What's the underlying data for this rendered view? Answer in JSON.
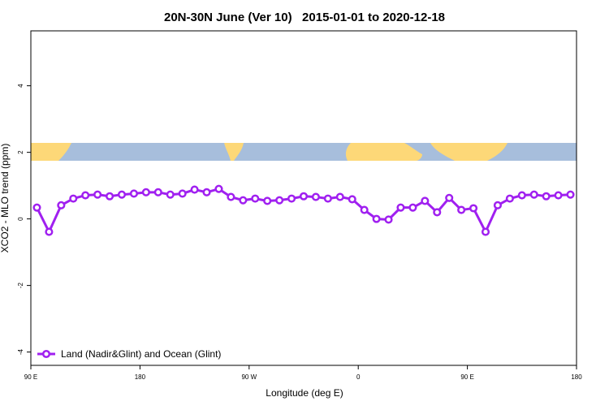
{
  "chart_data": {
    "type": "line",
    "title": "20N-30N June (Ver 10)   2015-01-01 to 2020-12-18",
    "xlabel": "Longitude (deg E)",
    "ylabel": "XCO2 - MLO trend (ppm)",
    "x": [
      95,
      105,
      115,
      125,
      135,
      145,
      155,
      165,
      175,
      185,
      195,
      205,
      215,
      225,
      235,
      245,
      255,
      265,
      275,
      285,
      295,
      305,
      315,
      325,
      335,
      345,
      355,
      365,
      375,
      385,
      395,
      405,
      415,
      425,
      435,
      445,
      455,
      465,
      475,
      485,
      495,
      505,
      515,
      525,
      535
    ],
    "series": [
      {
        "name": "Land (Nadir&Glint) and Ocean (Glint)",
        "color": "#a020f0",
        "values": [
          0.34,
          -0.39,
          0.41,
          0.61,
          0.71,
          0.73,
          0.68,
          0.73,
          0.76,
          0.8,
          0.8,
          0.73,
          0.76,
          0.88,
          0.8,
          0.9,
          0.66,
          0.56,
          0.61,
          0.54,
          0.56,
          0.61,
          0.68,
          0.66,
          0.61,
          0.66,
          0.59,
          0.27,
          0.0,
          -0.02,
          0.34,
          0.34,
          0.54,
          0.2,
          0.63,
          0.27,
          0.32,
          -0.39,
          0.41,
          0.61,
          0.71,
          0.73,
          0.68,
          0.71,
          0.73
        ]
      }
    ],
    "xlim": [
      90,
      540
    ],
    "xticks": [
      {
        "value": 90,
        "label": "90 E"
      },
      180,
      {
        "value": 270,
        "label": "90 W"
      },
      {
        "value": 360,
        "label": "0"
      },
      {
        "value": 450,
        "label": "90 E"
      },
      {
        "value": 540,
        "label": "180"
      }
    ],
    "ylim": [
      -4.4,
      5.65
    ],
    "yticks": [
      -4,
      -2,
      0,
      2,
      4
    ],
    "legend": "bottom-left"
  }
}
